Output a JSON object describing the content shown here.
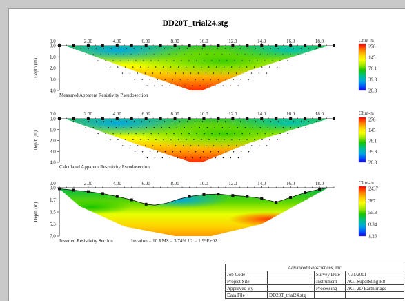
{
  "title": "DD20T_trial24.stg",
  "panels": [
    {
      "caption": "Measured Apparent Resistivity Pseudosection",
      "ylabel": "Depth (m)",
      "x_ticks": [
        "0.0",
        "2.00",
        "4.00",
        "6.00",
        "8.00",
        "10.0",
        "12.0",
        "14.0",
        "16.0",
        "18.0"
      ],
      "y_ticks": [
        "0.0",
        "1.0",
        "2.0",
        "3.0",
        "4.0"
      ],
      "legend_unit": "Ohm-m",
      "legend_values": [
        "278",
        "145",
        "76.1",
        "39.8",
        "20.8"
      ]
    },
    {
      "caption": "Calculated Apparent Resistivity Pseudosection",
      "ylabel": "Depth (m)",
      "x_ticks": [
        "0.0",
        "2.00",
        "4.00",
        "6.00",
        "8.00",
        "10.0",
        "12.0",
        "14.0",
        "16.0",
        "18.0"
      ],
      "y_ticks": [
        "0.0",
        "1.0",
        "2.0",
        "3.0",
        "4.0"
      ],
      "legend_unit": "Ohm-m",
      "legend_values": [
        "278",
        "145",
        "76.1",
        "39.8",
        "20.8"
      ]
    },
    {
      "caption": "Inverted Resistivity Section",
      "stats": "Iteration = 10   RMS =      3.74%   L2 =  1.99E+02",
      "ylabel": "Depth (m)",
      "x_ticks": [
        "0.0",
        "2.00",
        "4.00",
        "6.00",
        "8.00",
        "10.0",
        "12.0",
        "14.0",
        "16.0",
        "18.0"
      ],
      "y_ticks": [
        "0.0",
        "1.7",
        "3.5",
        "5.3",
        "7.0"
      ],
      "legend_unit": "Ohm-m",
      "legend_values": [
        "2437",
        "367",
        "55.3",
        "8.34",
        "1.26"
      ]
    }
  ],
  "info": {
    "company": "Advanced Geosciences, Inc",
    "rows": [
      [
        "Job Code",
        "",
        "Survey Date",
        "7/31/2001"
      ],
      [
        "Project Site",
        "",
        "Instrument",
        "AGI SuperSting R8"
      ],
      [
        "Approved By",
        "",
        "Processing",
        "AGI 2D EarthImage"
      ],
      [
        "Data File",
        "DD20T_trial24.stg",
        "",
        ""
      ]
    ]
  },
  "colors": {
    "scale": [
      "#ff0000",
      "#ff7a00",
      "#ffd200",
      "#f8ff00",
      "#9be600",
      "#17c400",
      "#00c08a",
      "#00a8e0",
      "#004cff",
      "#1a00d8"
    ]
  }
}
